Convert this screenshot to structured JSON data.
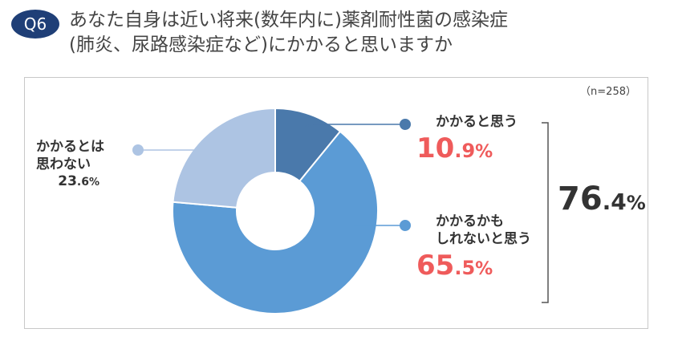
{
  "question": {
    "badge": "Q6",
    "title_line1": "あなた自身は近い将来(数年内に)薬剤耐性菌の感染症",
    "title_line2": "(肺炎、尿路感染症など)にかかると思いますか"
  },
  "chart_data": {
    "type": "pie",
    "title": "",
    "sample_size": "（n=258）",
    "categories": [
      "かかると思う",
      "かかるかもしれないと思う",
      "かかるとは思わない"
    ],
    "values": [
      10.9,
      65.5,
      23.6
    ],
    "unit": "%",
    "colors": [
      "#4a79ab",
      "#5b9bd5",
      "#adc4e3"
    ],
    "labels": {
      "get": {
        "line1": "かかると思う",
        "num": "10",
        "dec": ".9",
        "unit": "%"
      },
      "maybe": {
        "line1": "かかるかも",
        "line2": "しれないと思う",
        "num": "65",
        "dec": ".5",
        "unit": "%"
      },
      "notget": {
        "line1": "かかるとは",
        "line2": "思わない",
        "num": "23",
        "dec": ".6",
        "unit": "%"
      }
    },
    "combined": {
      "num": "76",
      "dec": ".4",
      "unit": "%"
    },
    "highlight_color": "#ef5b5b"
  }
}
